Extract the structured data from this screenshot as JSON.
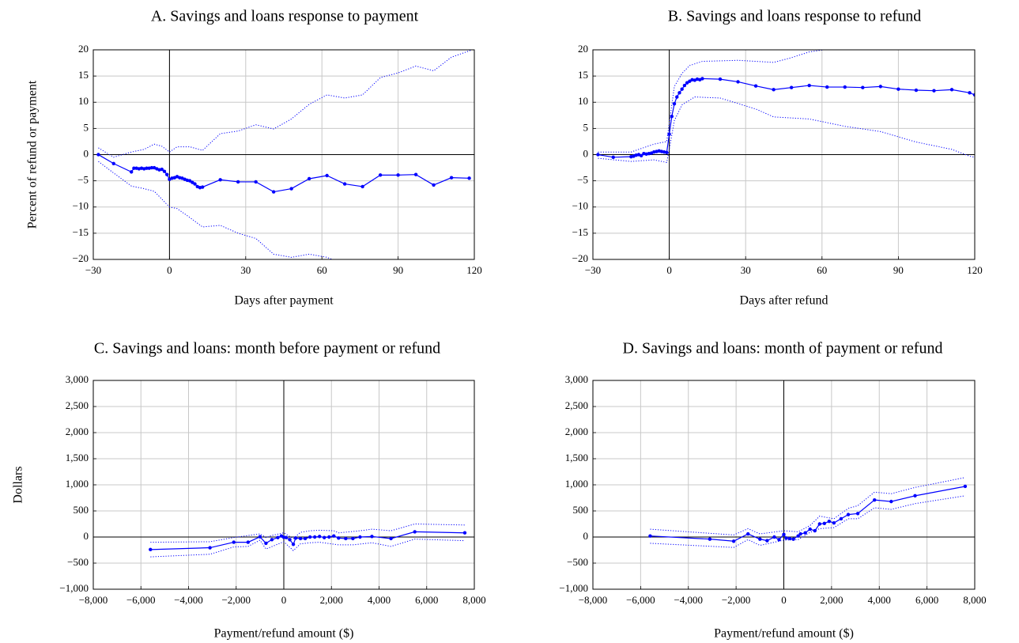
{
  "chart_data": [
    {
      "type": "line",
      "title": "A. Savings and loans response to payment",
      "xlabel": "Days after payment",
      "ylabel": "Percent of refund or payment",
      "xlim": [
        -30,
        120
      ],
      "ylim": [
        -20,
        20
      ],
      "xticks": [
        {
          "value": -30,
          "label": "−30"
        },
        0,
        30,
        60,
        90,
        120
      ],
      "yticks": [
        {
          "value": -20,
          "label": "−20"
        },
        {
          "value": -15,
          "label": "−15"
        },
        {
          "value": -10,
          "label": "−10"
        },
        {
          "value": -5,
          "label": "−5"
        },
        0,
        5,
        10,
        15,
        20
      ],
      "grid": true,
      "series": [
        {
          "color": "#0000ff",
          "marker": true,
          "dash": "solid",
          "x": [
            -28,
            -22,
            -15,
            -14,
            -13,
            -12,
            -11,
            -10,
            -9,
            -8,
            -7,
            -6,
            -5,
            -4,
            -3,
            -2,
            -1,
            0,
            1,
            2,
            3,
            4,
            5,
            6,
            7,
            8,
            9,
            10,
            11,
            12,
            13,
            20,
            27,
            34,
            41,
            48,
            55,
            62,
            69,
            76,
            83,
            90,
            97,
            104,
            111,
            118
          ],
          "values": [
            0,
            -1.7,
            -3.3,
            -2.6,
            -2.6,
            -2.7,
            -2.6,
            -2.7,
            -2.6,
            -2.6,
            -2.5,
            -2.5,
            -2.7,
            -2.9,
            -2.8,
            -3.2,
            -3.8,
            -4.7,
            -4.5,
            -4.4,
            -4.2,
            -4.4,
            -4.5,
            -4.7,
            -4.9,
            -5.0,
            -5.3,
            -5.6,
            -6.1,
            -6.3,
            -6.2,
            -4.8,
            -5.2,
            -5.2,
            -7.1,
            -6.5,
            -4.6,
            -4.0,
            -5.6,
            -6.1,
            -3.9,
            -3.9,
            -3.8,
            -5.8,
            -4.4,
            -4.5
          ]
        },
        {
          "color": "#0000ff",
          "marker": false,
          "dash": "dotted",
          "x": [
            -28,
            -22,
            -15,
            -10,
            -6,
            -3,
            0,
            3,
            8,
            13,
            20,
            27,
            34,
            41,
            48,
            55,
            62,
            69,
            76,
            83,
            90,
            97,
            104,
            111,
            118,
            120
          ],
          "values": [
            1.3,
            -0.5,
            0.5,
            1.0,
            2.0,
            1.6,
            0.5,
            1.5,
            1.5,
            0.8,
            4.0,
            4.5,
            5.7,
            4.9,
            6.8,
            9.6,
            11.4,
            10.8,
            11.4,
            14.7,
            15.6,
            16.9,
            16.0,
            18.6,
            19.8,
            20.2
          ]
        },
        {
          "color": "#0000ff",
          "marker": false,
          "dash": "dotted",
          "x": [
            -28,
            -22,
            -15,
            -10,
            -6,
            -3,
            0,
            3,
            8,
            13,
            20,
            27,
            34,
            41,
            48,
            55,
            62,
            69
          ],
          "values": [
            -1.3,
            -3.5,
            -6.0,
            -6.5,
            -7.0,
            -8.5,
            -10.0,
            -10.3,
            -12.0,
            -13.8,
            -13.5,
            -15.0,
            -16.0,
            -19.0,
            -19.6,
            -19.0,
            -19.6,
            -21.0
          ]
        }
      ]
    },
    {
      "type": "line",
      "title": "B. Savings and loans response to refund",
      "xlabel": "Days after refund",
      "xlim": [
        -30,
        120
      ],
      "ylim": [
        -20,
        20
      ],
      "xticks": [
        {
          "value": -30,
          "label": "−30"
        },
        0,
        30,
        60,
        90,
        120
      ],
      "yticks": [
        {
          "value": -20,
          "label": "−20"
        },
        {
          "value": -15,
          "label": "−15"
        },
        {
          "value": -10,
          "label": "−10"
        },
        {
          "value": -5,
          "label": "−5"
        },
        0,
        5,
        10,
        15,
        20
      ],
      "grid": true,
      "series": [
        {
          "color": "#0000ff",
          "marker": true,
          "dash": "solid",
          "x": [
            -28,
            -22,
            -15,
            -14,
            -13,
            -12,
            -11,
            -10,
            -9,
            -8,
            -7,
            -6,
            -5,
            -4,
            -3,
            -2,
            -1,
            0,
            1,
            2,
            3,
            4,
            5,
            6,
            7,
            8,
            9,
            10,
            11,
            12,
            13,
            20,
            27,
            34,
            41,
            48,
            55,
            62,
            69,
            76,
            83,
            90,
            97,
            104,
            111,
            118,
            120
          ],
          "values": [
            0,
            -0.5,
            -0.4,
            -0.3,
            -0.1,
            0,
            -0.2,
            0.2,
            0.1,
            0.2,
            0.3,
            0.5,
            0.6,
            0.7,
            0.6,
            0.5,
            0.4,
            3.9,
            7.3,
            9.7,
            11.0,
            11.8,
            12.5,
            13.2,
            13.7,
            14.0,
            14.3,
            14.2,
            14.4,
            14.3,
            14.5,
            14.4,
            13.9,
            13.1,
            12.4,
            12.8,
            13.2,
            12.9,
            12.9,
            12.8,
            13.0,
            12.5,
            12.3,
            12.2,
            12.4,
            11.8,
            11.4
          ]
        },
        {
          "color": "#0000ff",
          "marker": false,
          "dash": "dotted",
          "x": [
            -28,
            -15,
            -6,
            -1,
            0,
            2,
            5,
            8,
            13,
            27,
            41,
            48,
            55,
            62
          ],
          "values": [
            0.5,
            0.5,
            2.0,
            2.5,
            6,
            13,
            15.5,
            17,
            17.8,
            18,
            17.6,
            18.5,
            19.6,
            20.1
          ]
        },
        {
          "color": "#0000ff",
          "marker": false,
          "dash": "dotted",
          "x": [
            -28,
            -15,
            -6,
            -1,
            0,
            2,
            5,
            10,
            20,
            34,
            41,
            55,
            69,
            83,
            97,
            111,
            118,
            120
          ],
          "values": [
            -0.7,
            -1.3,
            -1.0,
            -1.5,
            1.0,
            6.5,
            9.5,
            11.0,
            10.8,
            8.7,
            7.2,
            6.8,
            5.4,
            4.4,
            2.4,
            1.0,
            -0.3,
            -0.5
          ]
        }
      ]
    },
    {
      "type": "line",
      "title": "C. Savings and loans: month before payment or refund",
      "xlabel": "Payment/refund amount ($)",
      "ylabel": "Dollars",
      "xlim": [
        -8000,
        8000
      ],
      "ylim": [
        -1000,
        3000
      ],
      "xticks": [
        {
          "value": -8000,
          "label": "−8,000"
        },
        {
          "value": -6000,
          "label": "−6,000"
        },
        {
          "value": -4000,
          "label": "−4,000"
        },
        {
          "value": -2000,
          "label": "−2,000"
        },
        0,
        {
          "value": 2000,
          "label": "2,000"
        },
        {
          "value": 4000,
          "label": "4,000"
        },
        {
          "value": 6000,
          "label": "6,000"
        },
        {
          "value": 8000,
          "label": "8,000"
        }
      ],
      "yticks": [
        {
          "value": -1000,
          "label": "−1,000"
        },
        {
          "value": -500,
          "label": "−500"
        },
        0,
        500,
        {
          "value": 1000,
          "label": "1,000"
        },
        {
          "value": 1500,
          "label": "1,500"
        },
        {
          "value": 2000,
          "label": "2,000"
        },
        {
          "value": 2500,
          "label": "2,500"
        },
        {
          "value": 3000,
          "label": "3,000"
        }
      ],
      "grid": true,
      "series": [
        {
          "color": "#0000ff",
          "marker": true,
          "dash": "solid",
          "x": [
            -5600,
            -3100,
            -2100,
            -1500,
            -1000,
            -750,
            -500,
            -250,
            -100,
            0,
            100,
            250,
            400,
            500,
            700,
            900,
            1100,
            1300,
            1500,
            1700,
            1900,
            2100,
            2300,
            2600,
            2900,
            3200,
            3700,
            4500,
            5500,
            7600
          ],
          "values": [
            -240,
            -205,
            -100,
            -100,
            5,
            -120,
            -50,
            -10,
            20,
            -5,
            -10,
            -50,
            -140,
            -20,
            -30,
            -30,
            0,
            0,
            10,
            -10,
            0,
            20,
            -20,
            -30,
            -30,
            0,
            10,
            -30,
            100,
            80
          ]
        },
        {
          "color": "#0000ff",
          "marker": false,
          "dash": "dotted",
          "x": [
            -5600,
            -3100,
            -2100,
            -1000,
            -750,
            -500,
            0,
            400,
            700,
            1100,
            1500,
            2100,
            2300,
            3200,
            3700,
            4500,
            5500,
            7600
          ],
          "values": [
            -100,
            -90,
            -10,
            60,
            -10,
            30,
            80,
            -30,
            90,
            120,
            130,
            120,
            80,
            120,
            150,
            120,
            250,
            230
          ]
        },
        {
          "color": "#0000ff",
          "marker": false,
          "dash": "dotted",
          "x": [
            -5600,
            -3100,
            -2100,
            -1500,
            -1000,
            -750,
            0,
            400,
            700,
            1100,
            1500,
            2300,
            2900,
            3700,
            4500,
            5500,
            7600
          ],
          "values": [
            -380,
            -330,
            -190,
            -180,
            -60,
            -230,
            -90,
            -260,
            -130,
            -110,
            -100,
            -150,
            -150,
            -110,
            -180,
            -40,
            -70
          ]
        }
      ]
    },
    {
      "type": "line",
      "title": "D. Savings and loans: month of payment or refund",
      "xlabel": "Payment/refund amount ($)",
      "xlim": [
        -8000,
        8000
      ],
      "ylim": [
        -1000,
        3000
      ],
      "xticks": [
        {
          "value": -8000,
          "label": "−8,000"
        },
        {
          "value": -6000,
          "label": "−6,000"
        },
        {
          "value": -4000,
          "label": "−4,000"
        },
        {
          "value": -2000,
          "label": "−2,000"
        },
        0,
        {
          "value": 2000,
          "label": "2,000"
        },
        {
          "value": 4000,
          "label": "4,000"
        },
        {
          "value": 6000,
          "label": "6,000"
        },
        {
          "value": 8000,
          "label": "8,000"
        }
      ],
      "yticks": [
        {
          "value": -1000,
          "label": "−1,000"
        },
        {
          "value": -500,
          "label": "−500"
        },
        0,
        500,
        {
          "value": 1000,
          "label": "1,000"
        },
        {
          "value": 1500,
          "label": "1,500"
        },
        {
          "value": 2000,
          "label": "2,000"
        },
        {
          "value": 2500,
          "label": "2,500"
        },
        {
          "value": 3000,
          "label": "3,000"
        }
      ],
      "grid": true,
      "series": [
        {
          "color": "#0000ff",
          "marker": true,
          "dash": "solid",
          "x": [
            -5600,
            -3100,
            -2100,
            -1500,
            -1000,
            -700,
            -400,
            -200,
            0,
            100,
            250,
            400,
            600,
            700,
            900,
            1100,
            1300,
            1500,
            1700,
            1900,
            2100,
            2400,
            2700,
            3100,
            3800,
            4500,
            5500,
            7600
          ],
          "values": [
            20,
            -40,
            -80,
            60,
            -40,
            -70,
            0,
            -50,
            50,
            -20,
            -30,
            -40,
            20,
            60,
            80,
            150,
            120,
            250,
            260,
            300,
            270,
            350,
            430,
            450,
            710,
            680,
            790,
            970
          ]
        },
        {
          "color": "#0000ff",
          "marker": false,
          "dash": "dotted",
          "x": [
            -5600,
            -2100,
            -1500,
            -1000,
            0,
            600,
            1100,
            1500,
            2100,
            2700,
            3100,
            3800,
            4500,
            5500,
            7600
          ],
          "values": [
            150,
            40,
            160,
            60,
            120,
            100,
            220,
            400,
            350,
            550,
            600,
            860,
            830,
            950,
            1140
          ]
        },
        {
          "color": "#0000ff",
          "marker": false,
          "dash": "dotted",
          "x": [
            -5600,
            -2100,
            -1500,
            -1000,
            0,
            600,
            1100,
            1500,
            2100,
            2700,
            3100,
            3800,
            4500,
            5500,
            7600
          ],
          "values": [
            -120,
            -200,
            -50,
            -160,
            -60,
            -50,
            90,
            160,
            180,
            350,
            350,
            560,
            530,
            640,
            790
          ]
        }
      ]
    }
  ]
}
